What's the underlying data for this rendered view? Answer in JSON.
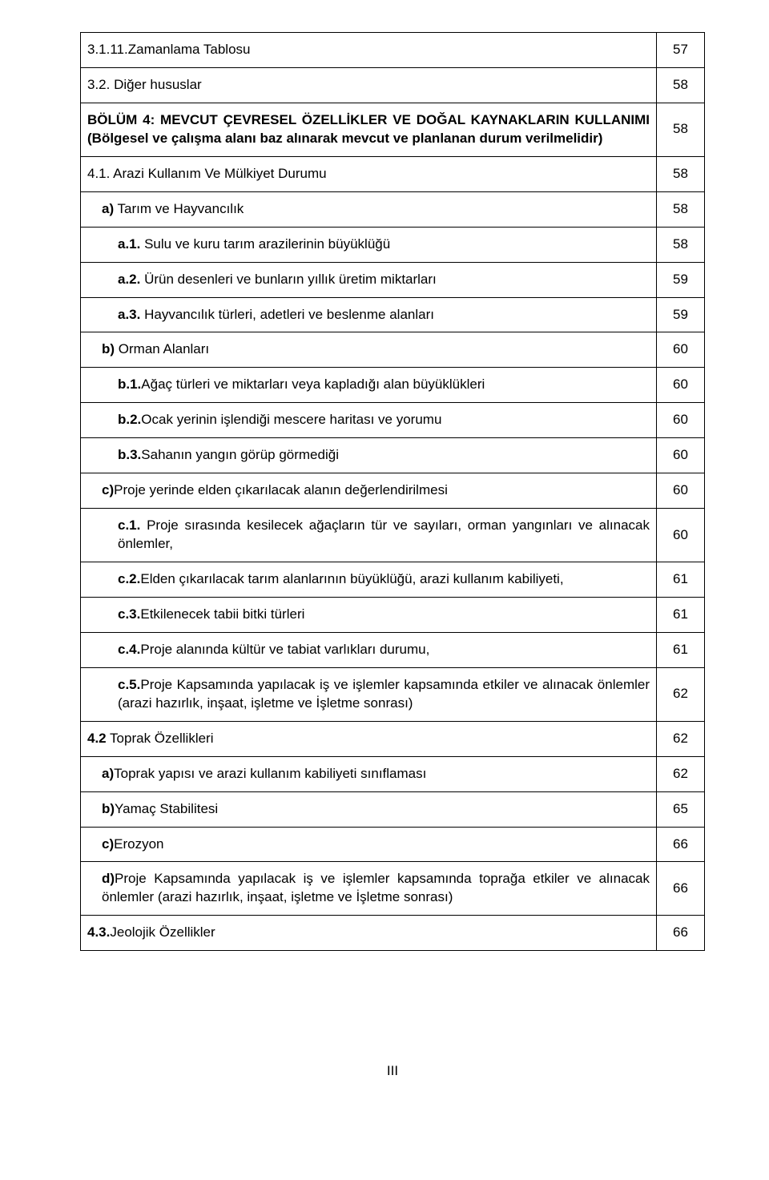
{
  "rows": [
    {
      "text": "3.1.11.Zamanlama Tablosu",
      "page": "57",
      "bold": false,
      "indent": 0
    },
    {
      "text": "3.2. Diğer hususlar",
      "page": "58",
      "bold": false,
      "indent": 0
    },
    {
      "text": "BÖLÜM 4: MEVCUT ÇEVRESEL ÖZELLİKLER VE DOĞAL KAYNAKLARIN KULLANIMI (Bölgesel ve çalışma alanı baz alınarak  mevcut ve planlanan durum verilmelidir)",
      "page": "58",
      "bold": true,
      "indent": 0,
      "justify": true
    },
    {
      "text": "4.1. Arazi Kullanım Ve Mülkiyet Durumu",
      "page": "58",
      "bold": false,
      "indent": 0
    },
    {
      "text": "a) Tarım ve Hayvancılık",
      "page": "58",
      "bold": true,
      "indent": 1,
      "partbold": "a)",
      "rest": " Tarım ve Hayvancılık"
    },
    {
      "text": "a.1. Sulu ve kuru tarım arazilerinin büyüklüğü",
      "page": "58",
      "bold": false,
      "indent": 2,
      "partbold": "a.1.",
      "rest": " Sulu ve kuru tarım arazilerinin büyüklüğü"
    },
    {
      "text": "a.2. Ürün desenleri ve bunların yıllık üretim miktarları",
      "page": "59",
      "bold": false,
      "indent": 2,
      "partbold": "a.2.",
      "rest": " Ürün desenleri ve bunların yıllık üretim miktarları"
    },
    {
      "text": "a.3. Hayvancılık türleri, adetleri ve beslenme alanları",
      "page": "59",
      "bold": false,
      "indent": 2,
      "partbold": "a.3.",
      "rest": " Hayvancılık türleri, adetleri ve beslenme alanları"
    },
    {
      "text": "b) Orman Alanları",
      "page": "60",
      "bold": true,
      "indent": 1,
      "partbold": "b)",
      "rest": " Orman Alanları"
    },
    {
      "text": "b.1.Ağaç türleri ve miktarları veya kapladığı alan büyüklükleri",
      "page": "60",
      "bold": false,
      "indent": 2,
      "partbold": "b.1.",
      "rest": "Ağaç türleri ve miktarları veya kapladığı alan büyüklükleri"
    },
    {
      "text": "b.2.Ocak yerinin işlendiği mescere haritası ve yorumu",
      "page": "60",
      "bold": false,
      "indent": 2,
      "partbold": "b.2.",
      "rest": "Ocak yerinin işlendiği mescere haritası ve yorumu"
    },
    {
      "text": "b.3.Sahanın yangın görüp görmediği",
      "page": "60",
      "bold": false,
      "indent": 2,
      "partbold": "b.3.",
      "rest": "Sahanın yangın görüp görmediği"
    },
    {
      "text": "c)Proje yerinde elden çıkarılacak  alanın değerlendirilmesi",
      "page": "60",
      "bold": false,
      "indent": 1,
      "partbold": "c)",
      "rest": "Proje yerinde elden çıkarılacak  alanın değerlendirilmesi"
    },
    {
      "text": "c.1. Proje sırasında kesilecek ağaçların tür ve sayıları, orman yangınları ve alınacak önlemler,",
      "page": "60",
      "bold": false,
      "indent": 2,
      "partbold": "c.1.",
      "rest": " Proje sırasında kesilecek ağaçların tür ve sayıları, orman yangınları ve alınacak önlemler,",
      "justify": true
    },
    {
      "text": "c.2.Elden çıkarılacak tarım alanlarının büyüklüğü, arazi kullanım kabiliyeti,",
      "page": "61",
      "bold": false,
      "indent": 2,
      "partbold": "c.2.",
      "rest": "Elden çıkarılacak tarım alanlarının büyüklüğü, arazi kullanım kabiliyeti,"
    },
    {
      "text": "c.3.Etkilenecek tabii bitki türleri",
      "page": "61",
      "bold": false,
      "indent": 2,
      "partbold": "c.3.",
      "rest": "Etkilenecek tabii bitki türleri"
    },
    {
      "text": "c.4.Proje alanında kültür ve tabiat varlıkları durumu,",
      "page": "61",
      "bold": false,
      "indent": 2,
      "partbold": "c.4.",
      "rest": "Proje alanında kültür ve tabiat varlıkları durumu,"
    },
    {
      "text": "c.5.Proje Kapsamında yapılacak iş ve işlemler kapsamında etkiler ve alınacak önlemler (arazi hazırlık, inşaat, işletme ve İşletme sonrası)",
      "page": "62",
      "bold": false,
      "indent": 2,
      "partbold": "c.5.",
      "rest": "Proje Kapsamında yapılacak iş ve işlemler kapsamında etkiler ve alınacak önlemler (arazi hazırlık, inşaat, işletme ve İşletme sonrası)",
      "justify": true
    },
    {
      "text": "4.2 Toprak Özellikleri",
      "page": "62",
      "bold": true,
      "indent": 0,
      "partbold": "4.2",
      "rest": " Toprak Özellikleri"
    },
    {
      "text": "a)Toprak yapısı ve  arazi kullanım kabiliyeti sınıflaması",
      "page": "62",
      "bold": false,
      "indent": 1,
      "partbold": "a)",
      "rest": "Toprak yapısı ve  arazi kullanım kabiliyeti sınıflaması"
    },
    {
      "text": "b)Yamaç Stabilitesi",
      "page": "65",
      "bold": false,
      "indent": 1,
      "partbold": "b)",
      "rest": "Yamaç Stabilitesi"
    },
    {
      "text": "c)Erozyon",
      "page": "66",
      "bold": false,
      "indent": 1,
      "partbold": "c)",
      "rest": "Erozyon"
    },
    {
      "text": "d)Proje Kapsamında yapılacak iş ve işlemler kapsamında toprağa etkiler ve alınacak önlemler (arazi hazırlık, inşaat, işletme ve İşletme sonrası)",
      "page": "66",
      "bold": false,
      "indent": 1,
      "partbold": "d)",
      "rest": "Proje Kapsamında yapılacak iş ve işlemler kapsamında toprağa etkiler ve alınacak önlemler (arazi hazırlık, inşaat, işletme ve İşletme sonrası)",
      "justify": true
    },
    {
      "text": "4.3.Jeolojik Özellikler",
      "page": "66",
      "bold": true,
      "indent": 0,
      "partbold": "4.3.",
      "rest": "Jeolojik Özellikler"
    }
  ],
  "footer": "III"
}
